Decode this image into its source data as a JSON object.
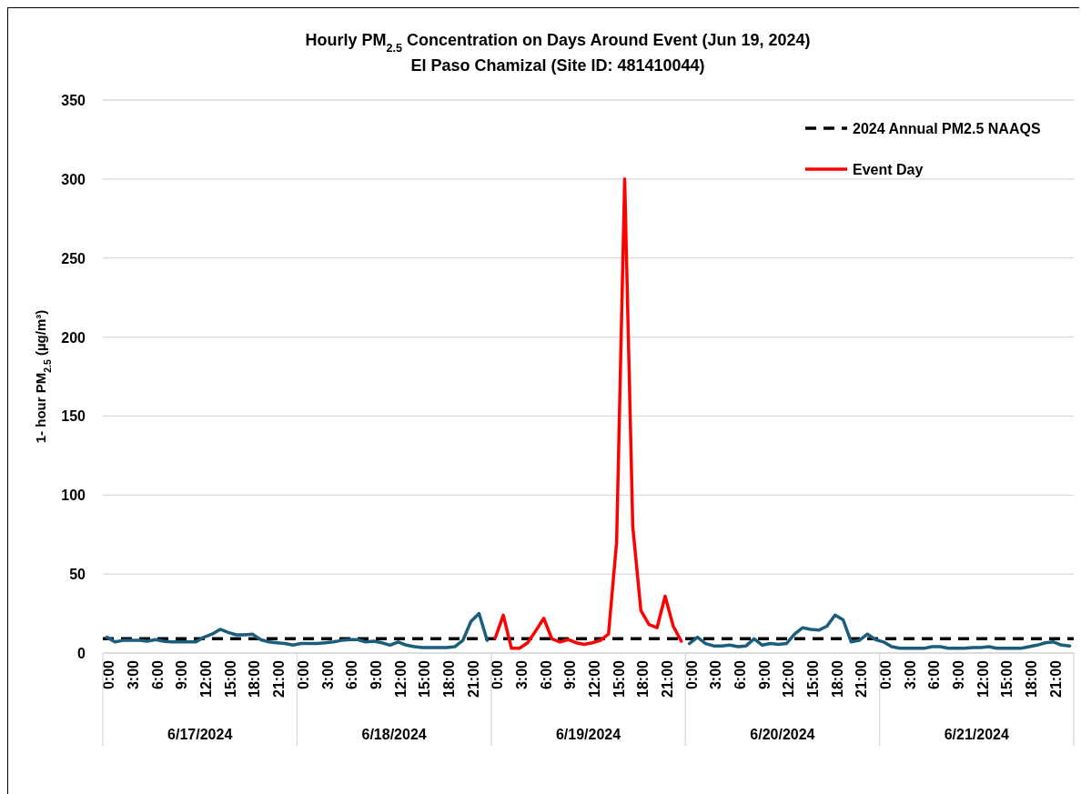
{
  "chart_data": {
    "type": "line",
    "title": "Hourly PM$_{2.5}$ Concentration on Days Around Event (Jun 19, 2024)",
    "subtitle": "El Paso Chamizal (Site ID: 481410044)",
    "ylabel": "1- hour PM$_{2.5}$  (µg/m³)",
    "categories": [
      "0:00",
      null,
      null,
      "3:00",
      null,
      null,
      "6:00",
      null,
      null,
      "9:00",
      null,
      null,
      "12:00",
      null,
      null,
      "15:00",
      null,
      null,
      "18:00",
      null,
      null,
      "21:00",
      null,
      null,
      "0:00",
      null,
      null,
      "3:00",
      null,
      null,
      "6:00",
      null,
      null,
      "9:00",
      null,
      null,
      "12:00",
      null,
      null,
      "15:00",
      null,
      null,
      "18:00",
      null,
      null,
      "21:00",
      null,
      null,
      "0:00",
      null,
      null,
      "3:00",
      null,
      null,
      "6:00",
      null,
      null,
      "9:00",
      null,
      null,
      "12:00",
      null,
      null,
      "15:00",
      null,
      null,
      "18:00",
      null,
      null,
      "21:00",
      null,
      null,
      "0:00",
      null,
      null,
      "3:00",
      null,
      null,
      "6:00",
      null,
      null,
      "9:00",
      null,
      null,
      "12:00",
      null,
      null,
      "15:00",
      null,
      null,
      "18:00",
      null,
      null,
      "21:00",
      null,
      null,
      "0:00",
      null,
      null,
      "3:00",
      null,
      null,
      "6:00",
      null,
      null,
      "9:00",
      null,
      null,
      "12:00",
      null,
      null,
      "15:00",
      null,
      null,
      "18:00",
      null,
      null,
      "21:00",
      null,
      null
    ],
    "annotations": [
      "6/17/2024",
      "6/18/2024",
      "6/19/2024",
      "6/20/2024",
      "6/21/2024"
    ],
    "series": [
      {
        "color": "#1b5e7b",
        "values": [
          10,
          7,
          8,
          8,
          8,
          7.5,
          8.5,
          7.5,
          7,
          7,
          7,
          7,
          10,
          12,
          15,
          13,
          11.5,
          11.5,
          12,
          8.5,
          7,
          6.5,
          6,
          5,
          6,
          6,
          6,
          6.5,
          7,
          8,
          8.5,
          8.5,
          7,
          7.5,
          6.5,
          5,
          7,
          5,
          4,
          3.5,
          3.5,
          3.5,
          3.5,
          4,
          8,
          20,
          25,
          8,
          null,
          null,
          null,
          null,
          null,
          null,
          null,
          null,
          null,
          null,
          null,
          null,
          null,
          null,
          null,
          null,
          null,
          null,
          null,
          null,
          null,
          null,
          null,
          null,
          6,
          10,
          6,
          4.5,
          4.5,
          5,
          4,
          4.5,
          9,
          5,
          6,
          5.5,
          6,
          12,
          16,
          15,
          14.5,
          17,
          24,
          21,
          7,
          8,
          12,
          8.5,
          7,
          4,
          3,
          3,
          3,
          3,
          4,
          4,
          3,
          3,
          3,
          3.5,
          3.5,
          4,
          3,
          3,
          3,
          3,
          4,
          5,
          6.5,
          7,
          5,
          4.5
        ]
      },
      {
        "name": "Event Day",
        "color": "#ff0000",
        "values": [
          null,
          null,
          null,
          null,
          null,
          null,
          null,
          null,
          null,
          null,
          null,
          null,
          null,
          null,
          null,
          null,
          null,
          null,
          null,
          null,
          null,
          null,
          null,
          null,
          null,
          null,
          null,
          null,
          null,
          null,
          null,
          null,
          null,
          null,
          null,
          null,
          null,
          null,
          null,
          null,
          null,
          null,
          null,
          null,
          null,
          null,
          null,
          null,
          9.5,
          24,
          3,
          3,
          6.5,
          14,
          22,
          9,
          7,
          8.5,
          6.5,
          5.5,
          6.5,
          8,
          12,
          70,
          300,
          80,
          27,
          18,
          16,
          36,
          17,
          7.5,
          null,
          null,
          null,
          null,
          null,
          null,
          null,
          null,
          null,
          null,
          null,
          null,
          null,
          null,
          null,
          null,
          null,
          null,
          null,
          null,
          null,
          null,
          null,
          null,
          null,
          null,
          null,
          null,
          null,
          null,
          null,
          null,
          null,
          null,
          null,
          null,
          null,
          null,
          null,
          null,
          null,
          null,
          null,
          null,
          null,
          null,
          null,
          null
        ]
      }
    ],
    "ref_lines": [
      {
        "axis": "y",
        "value": 9,
        "label": "2024 Annual PM2.5 NAAQS",
        "color": "#000000",
        "line_style": "dashed"
      }
    ],
    "ylim": [
      0,
      350
    ],
    "yticks": [
      0,
      50,
      100,
      150,
      200,
      250,
      300,
      350
    ],
    "grid": "y",
    "legend": "top right",
    "line_style": "solid",
    "marker": "none"
  }
}
